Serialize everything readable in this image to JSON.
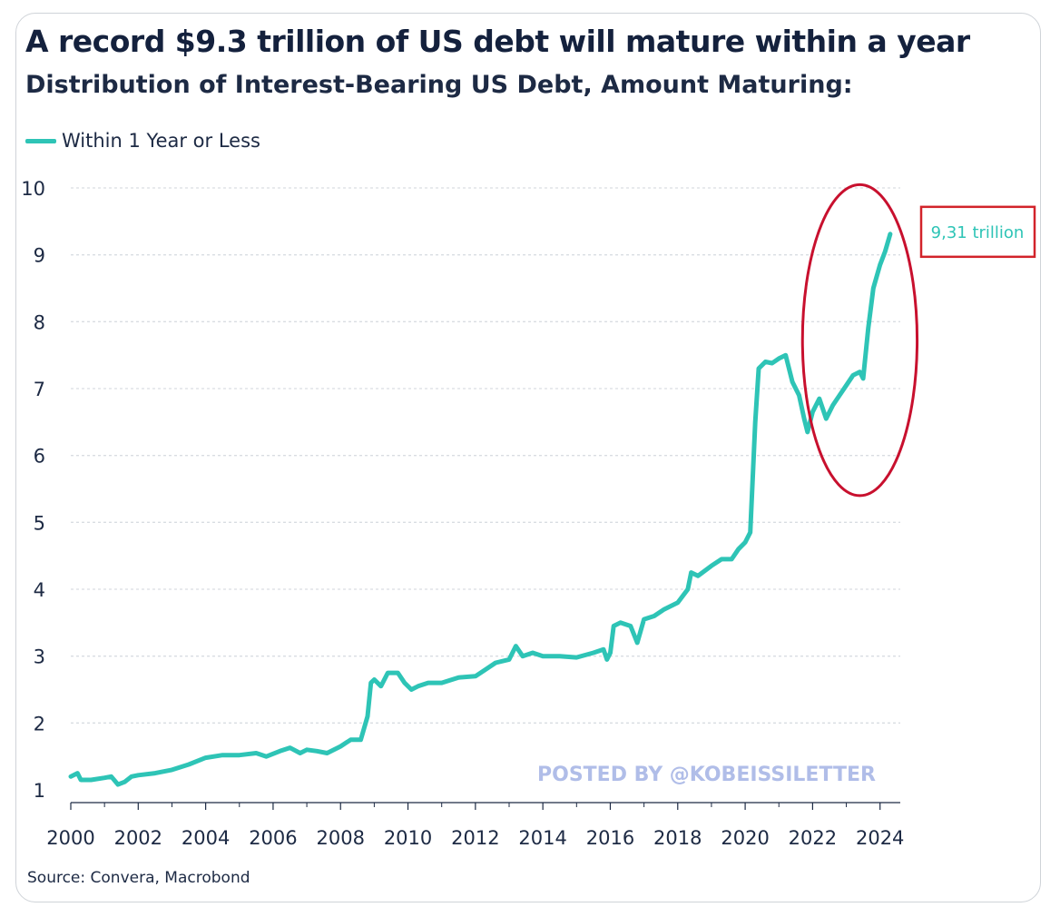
{
  "header": {
    "title": "A record $9.3 trillion of US debt will mature within a year",
    "subtitle": "Distribution of Interest-Bearing US Debt, Amount Maturing:"
  },
  "legend": {
    "label": "Within 1 Year or Less"
  },
  "source": "Source: Convera, Macrobond",
  "watermark": "POSTED BY @KOBEISSILETTER",
  "callout": {
    "label": "9,31 trillion",
    "box_color": "#d2232a",
    "ellipse_color": "#c8102e"
  },
  "colors": {
    "series": "#2ec4b6",
    "grid": "#d9dde2",
    "axis": "#1d2a44"
  },
  "chart_data": {
    "type": "line",
    "title": "A record $9.3 trillion of US debt will mature within a year",
    "subtitle": "Distribution of Interest-Bearing US Debt, Amount Maturing:",
    "xlabel": "",
    "ylabel": "",
    "xlim": [
      2000,
      2024.6
    ],
    "ylim": [
      1,
      10
    ],
    "x_ticks": [
      2000,
      2002,
      2004,
      2006,
      2008,
      2010,
      2012,
      2014,
      2016,
      2018,
      2020,
      2022,
      2024
    ],
    "y_ticks": [
      1,
      2,
      3,
      4,
      5,
      6,
      7,
      8,
      9,
      10
    ],
    "grid": "horizontal dotted",
    "legend_position": "top-left",
    "series": [
      {
        "name": "Within 1 Year or Less",
        "points": [
          [
            2000.0,
            1.2
          ],
          [
            2000.2,
            1.25
          ],
          [
            2000.3,
            1.15
          ],
          [
            2000.6,
            1.15
          ],
          [
            2001.0,
            1.18
          ],
          [
            2001.2,
            1.2
          ],
          [
            2001.4,
            1.08
          ],
          [
            2001.6,
            1.12
          ],
          [
            2001.8,
            1.2
          ],
          [
            2002.0,
            1.22
          ],
          [
            2002.5,
            1.25
          ],
          [
            2003.0,
            1.3
          ],
          [
            2003.5,
            1.38
          ],
          [
            2004.0,
            1.48
          ],
          [
            2004.5,
            1.52
          ],
          [
            2005.0,
            1.52
          ],
          [
            2005.5,
            1.55
          ],
          [
            2005.8,
            1.5
          ],
          [
            2006.2,
            1.58
          ],
          [
            2006.5,
            1.63
          ],
          [
            2006.8,
            1.55
          ],
          [
            2007.0,
            1.6
          ],
          [
            2007.3,
            1.58
          ],
          [
            2007.6,
            1.55
          ],
          [
            2008.0,
            1.65
          ],
          [
            2008.3,
            1.75
          ],
          [
            2008.6,
            1.75
          ],
          [
            2008.8,
            2.1
          ],
          [
            2008.9,
            2.6
          ],
          [
            2009.0,
            2.65
          ],
          [
            2009.2,
            2.55
          ],
          [
            2009.4,
            2.75
          ],
          [
            2009.7,
            2.75
          ],
          [
            2009.9,
            2.6
          ],
          [
            2010.1,
            2.5
          ],
          [
            2010.3,
            2.55
          ],
          [
            2010.6,
            2.6
          ],
          [
            2011.0,
            2.6
          ],
          [
            2011.5,
            2.68
          ],
          [
            2012.0,
            2.7
          ],
          [
            2012.3,
            2.8
          ],
          [
            2012.6,
            2.9
          ],
          [
            2013.0,
            2.95
          ],
          [
            2013.2,
            3.15
          ],
          [
            2013.4,
            3.0
          ],
          [
            2013.7,
            3.05
          ],
          [
            2014.0,
            3.0
          ],
          [
            2014.5,
            3.0
          ],
          [
            2015.0,
            2.98
          ],
          [
            2015.5,
            3.05
          ],
          [
            2015.8,
            3.1
          ],
          [
            2015.9,
            2.95
          ],
          [
            2016.0,
            3.05
          ],
          [
            2016.1,
            3.45
          ],
          [
            2016.3,
            3.5
          ],
          [
            2016.6,
            3.45
          ],
          [
            2016.8,
            3.2
          ],
          [
            2017.0,
            3.55
          ],
          [
            2017.3,
            3.6
          ],
          [
            2017.6,
            3.7
          ],
          [
            2018.0,
            3.8
          ],
          [
            2018.3,
            4.0
          ],
          [
            2018.4,
            4.25
          ],
          [
            2018.6,
            4.2
          ],
          [
            2019.0,
            4.35
          ],
          [
            2019.3,
            4.45
          ],
          [
            2019.6,
            4.45
          ],
          [
            2019.8,
            4.6
          ],
          [
            2020.0,
            4.7
          ],
          [
            2020.15,
            4.85
          ],
          [
            2020.3,
            6.5
          ],
          [
            2020.4,
            7.3
          ],
          [
            2020.6,
            7.4
          ],
          [
            2020.8,
            7.38
          ],
          [
            2021.0,
            7.45
          ],
          [
            2021.2,
            7.5
          ],
          [
            2021.4,
            7.1
          ],
          [
            2021.6,
            6.9
          ],
          [
            2021.75,
            6.55
          ],
          [
            2021.85,
            6.35
          ],
          [
            2022.0,
            6.65
          ],
          [
            2022.2,
            6.85
          ],
          [
            2022.4,
            6.55
          ],
          [
            2022.6,
            6.75
          ],
          [
            2022.8,
            6.9
          ],
          [
            2023.0,
            7.05
          ],
          [
            2023.2,
            7.2
          ],
          [
            2023.4,
            7.25
          ],
          [
            2023.5,
            7.15
          ],
          [
            2023.65,
            7.9
          ],
          [
            2023.8,
            8.5
          ],
          [
            2024.0,
            8.85
          ],
          [
            2024.15,
            9.05
          ],
          [
            2024.3,
            9.31
          ]
        ]
      }
    ],
    "annotations": [
      {
        "type": "ellipse",
        "x_range": [
          2021.7,
          2025.1
        ],
        "y_range": [
          5.4,
          10.05
        ]
      },
      {
        "type": "label",
        "text": "9,31 trillion",
        "value": 9.31
      }
    ]
  }
}
